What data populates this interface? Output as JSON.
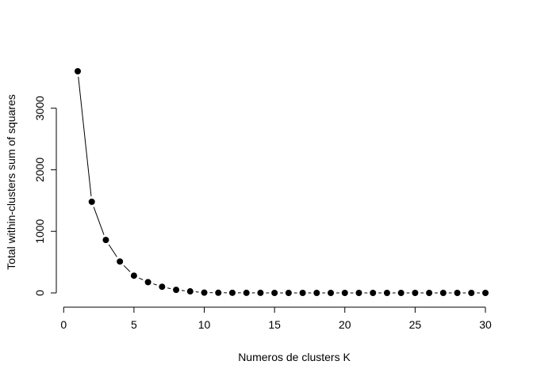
{
  "chart_data": {
    "type": "line",
    "title": "",
    "xlabel": "Numeros de clusters K",
    "ylabel": "Total within-clusters sum of squares",
    "xlim": [
      1,
      30
    ],
    "ylim": [
      0,
      3600
    ],
    "x_ticks": [
      0,
      5,
      10,
      15,
      20,
      25,
      30
    ],
    "y_ticks": [
      0,
      1000,
      2000,
      3000
    ],
    "grid": false,
    "legend": "none",
    "marker": "filled-circle",
    "line_style": "connected points with gaps",
    "colors": {
      "line": "#000000",
      "points": "#000000",
      "background": "#ffffff"
    },
    "x": [
      1,
      2,
      3,
      4,
      5,
      6,
      7,
      8,
      9,
      10,
      11,
      12,
      13,
      14,
      15,
      16,
      17,
      18,
      19,
      20,
      21,
      22,
      23,
      24,
      25,
      26,
      27,
      28,
      29,
      30
    ],
    "y": [
      3600,
      1480,
      860,
      510,
      280,
      175,
      100,
      50,
      25,
      5,
      3,
      2,
      1,
      1,
      0,
      0,
      0,
      0,
      0,
      0,
      0,
      0,
      0,
      0,
      0,
      0,
      0,
      0,
      0,
      0
    ]
  }
}
